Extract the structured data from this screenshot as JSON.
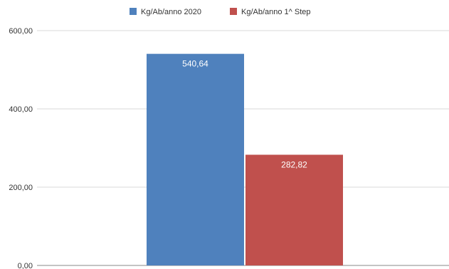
{
  "chart_data": {
    "type": "bar",
    "categories": [
      ""
    ],
    "series": [
      {
        "name": "Kg/Ab/anno 2020",
        "values": [
          540.64
        ],
        "color": "#4F81BD",
        "label": "540,64"
      },
      {
        "name": "Kg/Ab/anno 1^ Step",
        "values": [
          282.82
        ],
        "color": "#C0504D",
        "label": "282,82"
      }
    ],
    "ylim": [
      0,
      600
    ],
    "yticks": [
      0,
      200,
      400,
      600
    ],
    "ytick_labels": [
      "0,00",
      "200,00",
      "400,00",
      "600,00"
    ],
    "grid": true,
    "legend": "top-center",
    "title": "",
    "xlabel": "",
    "ylabel": ""
  }
}
